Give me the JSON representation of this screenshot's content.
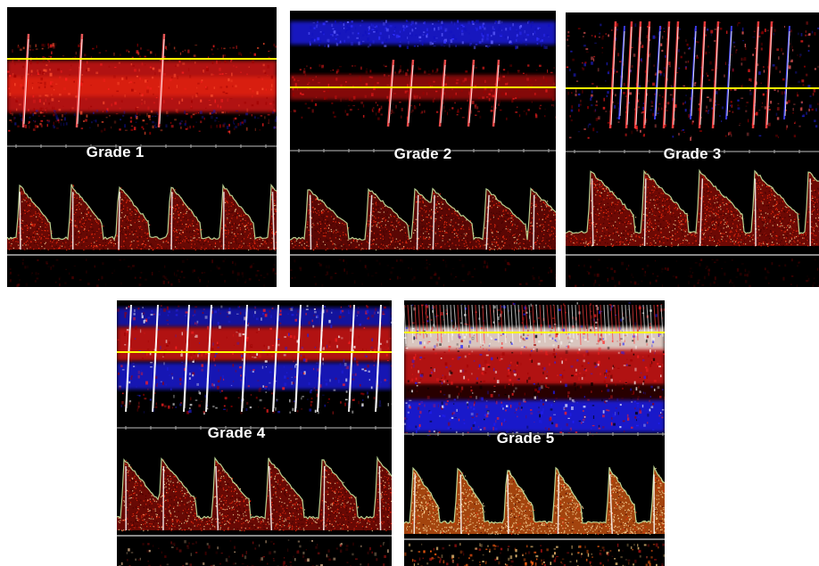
{
  "panels": [
    {
      "label": "Grade 1"
    },
    {
      "label": "Grade 2"
    },
    {
      "label": "Grade 3"
    },
    {
      "label": "Grade 4"
    },
    {
      "label": "Grade 5"
    }
  ],
  "colors": {
    "background": "#000000",
    "flow_toward": "#d01818",
    "flow_away": "#1a1ae0",
    "reference_line": "#ffff00",
    "envelope": "#c8e6a0",
    "baseline": "#8a8a8a"
  }
}
